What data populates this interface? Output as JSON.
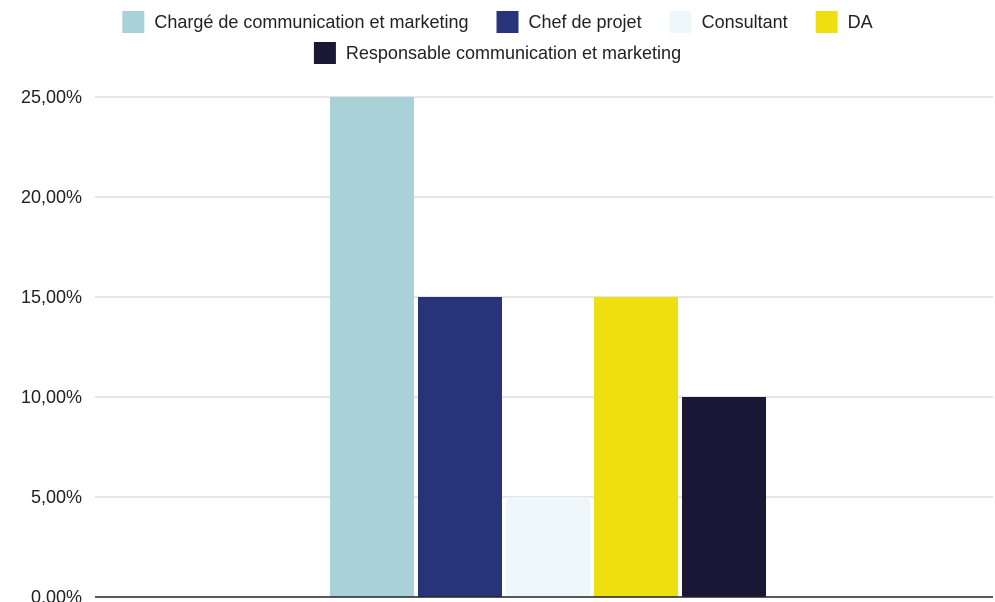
{
  "chart_data": {
    "type": "bar",
    "title": "",
    "xlabel": "",
    "ylabel": "",
    "categories": [
      ""
    ],
    "ylim": [
      0,
      0.25
    ],
    "yticks": [
      0,
      0.05,
      0.1,
      0.15,
      0.2,
      0.25
    ],
    "ytick_labels": [
      "0,00%",
      "5,00%",
      "10,00%",
      "15,00%",
      "20,00%",
      "25,00%"
    ],
    "grid": true,
    "legend_position": "top",
    "series": [
      {
        "name": "Chargé de communication et marketing",
        "color": "#a8d2d8",
        "values": [
          0.25
        ]
      },
      {
        "name": "Chef de projet",
        "color": "#283479",
        "values": [
          0.15
        ]
      },
      {
        "name": "Consultant",
        "color": "#eef7fa",
        "values": [
          0.05
        ]
      },
      {
        "name": "DA",
        "color": "#eedf10",
        "values": [
          0.15
        ]
      },
      {
        "name": "Responsable communication et marketing",
        "color": "#1a1836",
        "values": [
          0.1
        ]
      }
    ]
  }
}
